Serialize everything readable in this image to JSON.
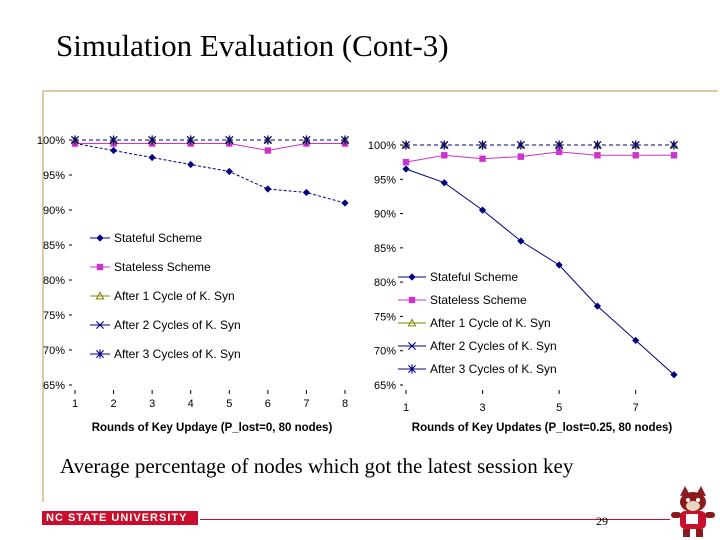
{
  "slide": {
    "title": "Simulation Evaluation (Cont-3)",
    "caption": "Average percentage of nodes which got the latest session key",
    "footer_logo_text": "NC STATE UNIVERSITY",
    "page_number": "29",
    "colors": {
      "accent_red": "#c8102e",
      "rule": "#e0c8a0"
    }
  },
  "chart_data": [
    {
      "type": "line",
      "xlabel": "Rounds of Key Updaye (P_lost=0, 80 nodes)",
      "ylabel": "",
      "x_ticks": [
        "1",
        "2",
        "3",
        "4",
        "5",
        "6",
        "7",
        "8"
      ],
      "x": [
        1,
        2,
        3,
        4,
        5,
        6,
        7,
        8
      ],
      "xlim": [
        1,
        8
      ],
      "y_ticks": [
        "100%",
        "95%",
        "90%",
        "85%",
        "80%",
        "75%",
        "70%",
        "65%"
      ],
      "ylim": [
        65,
        100
      ],
      "legend_position": "left",
      "series": [
        {
          "name": "Stateful Scheme",
          "marker": "diamond",
          "color": "#000080",
          "values": [
            99.5,
            98.5,
            97.5,
            96.5,
            95.5,
            93,
            92.5,
            91
          ]
        },
        {
          "name": "Stateless Scheme",
          "marker": "square",
          "color": "#cc33cc",
          "values": [
            99.5,
            99.5,
            99.5,
            99.5,
            99.5,
            98.5,
            99.5,
            99.5
          ]
        },
        {
          "name": "After 1 Cycle of K. Syn",
          "marker": "triangle",
          "color": "#808000",
          "values": [
            100,
            100,
            100,
            100,
            100,
            100,
            100,
            100
          ]
        },
        {
          "name": "After 2 Cycles of K. Syn",
          "marker": "x",
          "color": "#000080",
          "values": [
            100,
            100,
            100,
            100,
            100,
            100,
            100,
            100
          ]
        },
        {
          "name": "After 3 Cycles of K. Syn",
          "marker": "star",
          "color": "#000080",
          "values": [
            100,
            100,
            100,
            100,
            100,
            100,
            100,
            100
          ]
        }
      ]
    },
    {
      "type": "line",
      "xlabel": "Rounds of Key Updates (P_lost=0.25, 80 nodes)",
      "ylabel": "",
      "x_ticks": [
        "1",
        "3",
        "5",
        "7"
      ],
      "x": [
        1,
        2,
        3,
        4,
        5,
        6,
        7,
        8
      ],
      "xlim": [
        1,
        8
      ],
      "y_ticks": [
        "100%",
        "95%",
        "90%",
        "85%",
        "80%",
        "75%",
        "70%",
        "65%"
      ],
      "ylim": [
        65,
        100
      ],
      "legend_position": "bottom-left",
      "series": [
        {
          "name": "Stateful Scheme",
          "marker": "diamond",
          "color": "#000080",
          "values": [
            96.5,
            94.5,
            90.5,
            86,
            82.5,
            76.5,
            71.5,
            66.5
          ]
        },
        {
          "name": "Stateless Scheme",
          "marker": "square",
          "color": "#cc33cc",
          "values": [
            97.5,
            98.5,
            98,
            98.3,
            99,
            98.5,
            98.5,
            98.5
          ]
        },
        {
          "name": "After 1 Cycle of K. Syn",
          "marker": "triangle",
          "color": "#808000",
          "values": [
            100,
            100,
            100,
            100,
            100,
            100,
            100,
            100
          ]
        },
        {
          "name": "After 2 Cycles of K. Syn",
          "marker": "x",
          "color": "#000080",
          "values": [
            100,
            100,
            100,
            100,
            100,
            100,
            100,
            100
          ]
        },
        {
          "name": "After 3 Cycles of K. Syn",
          "marker": "star",
          "color": "#000080",
          "values": [
            100,
            100,
            100,
            100,
            100,
            100,
            100,
            100
          ]
        }
      ]
    }
  ]
}
